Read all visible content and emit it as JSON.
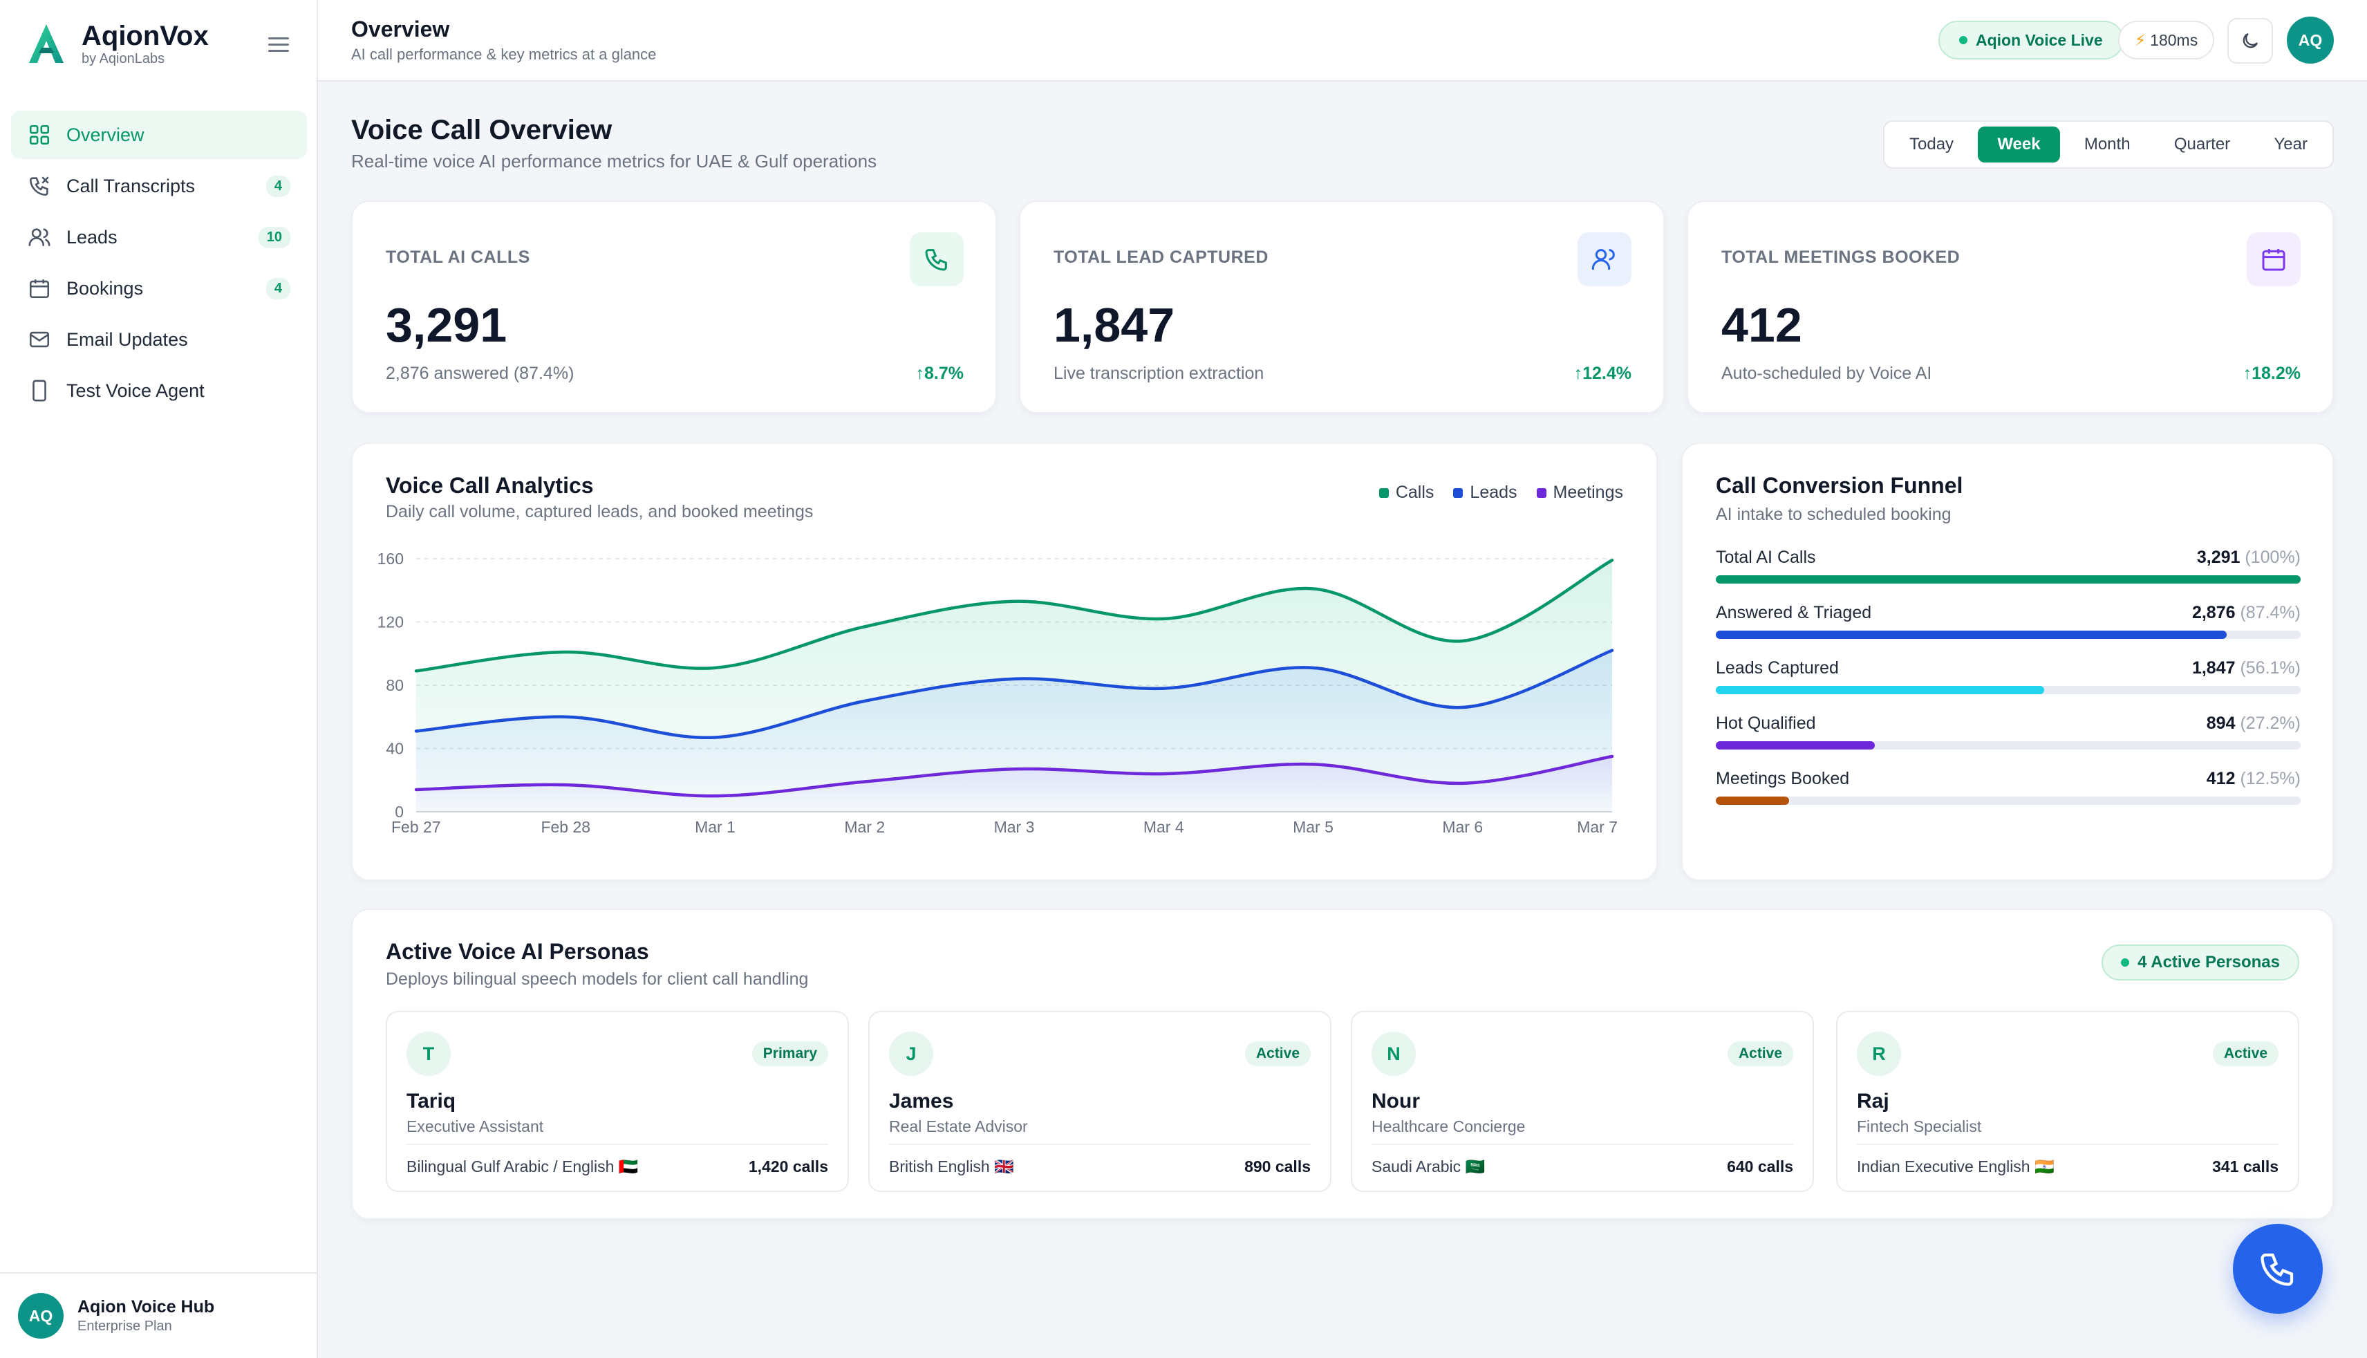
{
  "brand": {
    "name": "AqionVox",
    "sub": "by AqionLabs"
  },
  "sidebar": {
    "items": [
      {
        "label": "Overview",
        "badge": "",
        "icon": "grid-icon"
      },
      {
        "label": "Call Transcripts",
        "badge": "4",
        "icon": "phone-icon"
      },
      {
        "label": "Leads",
        "badge": "10",
        "icon": "users-icon"
      },
      {
        "label": "Bookings",
        "badge": "4",
        "icon": "calendar-icon"
      },
      {
        "label": "Email Updates",
        "badge": "",
        "icon": "mail-icon"
      },
      {
        "label": "Test Voice Agent",
        "badge": "",
        "icon": "phone-device-icon"
      }
    ],
    "footer": {
      "initials": "AQ",
      "title": "Aqion Voice Hub",
      "plan": "Enterprise Plan"
    }
  },
  "header": {
    "title": "Overview",
    "subtitle": "AI call performance & key metrics at a glance",
    "live_label": "Aqion Voice Live",
    "latency": "180ms",
    "avatar_initials": "AQ"
  },
  "overview": {
    "title": "Voice Call Overview",
    "subtitle": "Real-time voice AI performance metrics for UAE & Gulf operations",
    "periods": [
      "Today",
      "Week",
      "Month",
      "Quarter",
      "Year"
    ],
    "active_period": "Week"
  },
  "stats": [
    {
      "label": "TOTAL AI CALLS",
      "value": "3,291",
      "note": "2,876 answered (87.4%)",
      "change": "↑8.7%",
      "icon": "phone-icon",
      "accent": "#059669"
    },
    {
      "label": "TOTAL LEAD CAPTURED",
      "value": "1,847",
      "note": "Live transcription extraction",
      "change": "↑12.4%",
      "icon": "users-icon",
      "accent": "#2563eb"
    },
    {
      "label": "TOTAL MEETINGS BOOKED",
      "value": "412",
      "note": "Auto-scheduled by Voice AI",
      "change": "↑18.2%",
      "icon": "calendar-icon",
      "accent": "#7c3aed"
    }
  ],
  "analytics": {
    "title": "Voice Call Analytics",
    "subtitle": "Daily call volume, captured leads, and booked meetings"
  },
  "chart_data": {
    "type": "area",
    "x": [
      "Feb 27",
      "Feb 28",
      "Mar 1",
      "Mar 2",
      "Mar 3",
      "Mar 4",
      "Mar 5",
      "Mar 6",
      "Mar 7"
    ],
    "yticks": [
      0,
      40,
      80,
      120,
      160
    ],
    "ylim": [
      0,
      160
    ],
    "grid": true,
    "legend_position": "top-right",
    "series": [
      {
        "name": "Calls",
        "color": "#059669",
        "values": [
          89,
          101,
          91,
          117,
          133,
          122,
          141,
          108,
          159
        ]
      },
      {
        "name": "Leads",
        "color": "#1d4ed8",
        "values": [
          51,
          60,
          47,
          70,
          84,
          78,
          91,
          66,
          102
        ]
      },
      {
        "name": "Meetings",
        "color": "#6d28d9",
        "values": [
          14,
          17,
          10,
          19,
          27,
          24,
          30,
          18,
          35
        ]
      }
    ]
  },
  "funnel": {
    "title": "Call Conversion Funnel",
    "subtitle": "AI intake to scheduled booking",
    "rows": [
      {
        "label": "Total AI Calls",
        "value": "3,291",
        "pct": "(100%)",
        "fraction": 1.0,
        "color": "#059669"
      },
      {
        "label": "Answered & Triaged",
        "value": "2,876",
        "pct": "(87.4%)",
        "fraction": 0.874,
        "color": "#1d4ed8"
      },
      {
        "label": "Leads Captured",
        "value": "1,847",
        "pct": "(56.1%)",
        "fraction": 0.561,
        "color": "#22d3ee"
      },
      {
        "label": "Hot Qualified",
        "value": "894",
        "pct": "(27.2%)",
        "fraction": 0.272,
        "color": "#6d28d9"
      },
      {
        "label": "Meetings Booked",
        "value": "412",
        "pct": "(12.5%)",
        "fraction": 0.125,
        "color": "#b45309"
      }
    ]
  },
  "personas": {
    "title": "Active Voice AI Personas",
    "subtitle": "Deploys bilingual speech models for client call handling",
    "active_label": "4 Active Personas",
    "items": [
      {
        "initial": "T",
        "badge": "Primary",
        "name": "Tariq",
        "role": "Executive Assistant",
        "lang": "Bilingual Gulf Arabic / English 🇦🇪",
        "calls": "1,420 calls"
      },
      {
        "initial": "J",
        "badge": "Active",
        "name": "James",
        "role": "Real Estate Advisor",
        "lang": "British English 🇬🇧",
        "calls": "890 calls"
      },
      {
        "initial": "N",
        "badge": "Active",
        "name": "Nour",
        "role": "Healthcare Concierge",
        "lang": "Saudi Arabic 🇸🇦",
        "calls": "640 calls"
      },
      {
        "initial": "R",
        "badge": "Active",
        "name": "Raj",
        "role": "Fintech Specialist",
        "lang": "Indian Executive English 🇮🇳",
        "calls": "341 calls"
      }
    ]
  },
  "fab": {
    "icon": "phone-icon"
  }
}
